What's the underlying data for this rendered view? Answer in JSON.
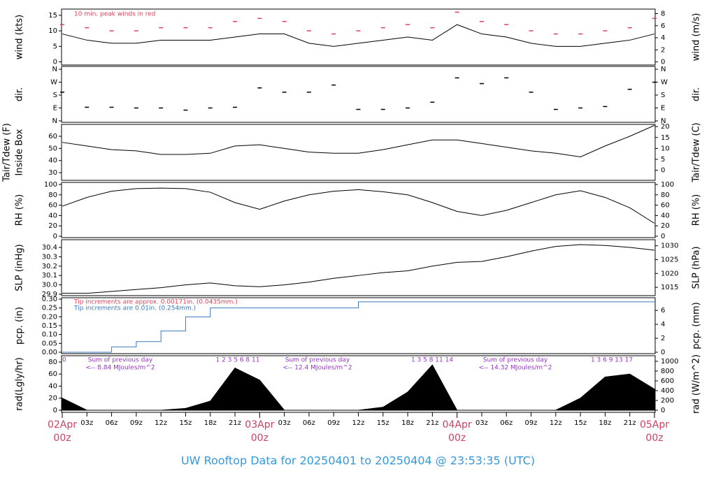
{
  "title": "UW Rooftop Data for 20250401  to  20250404 @ 23:53:35  (UTC)",
  "xlim": [
    0,
    72
  ],
  "x": [
    0,
    3,
    6,
    9,
    12,
    15,
    18,
    21,
    24,
    27,
    30,
    33,
    36,
    39,
    42,
    45,
    48,
    51,
    54,
    57,
    60,
    63,
    66,
    69,
    72
  ],
  "xticks": [
    {
      "value": 3,
      "label": "03z"
    },
    {
      "value": 6,
      "label": "06z"
    },
    {
      "value": 9,
      "label": "09z"
    },
    {
      "value": 12,
      "label": "12z"
    },
    {
      "value": 15,
      "label": "15z"
    },
    {
      "value": 18,
      "label": "18z"
    },
    {
      "value": 21,
      "label": "21z"
    },
    {
      "value": 27,
      "label": "03z"
    },
    {
      "value": 30,
      "label": "06z"
    },
    {
      "value": 33,
      "label": "09z"
    },
    {
      "value": 36,
      "label": "12z"
    },
    {
      "value": 39,
      "label": "15z"
    },
    {
      "value": 42,
      "label": "18z"
    },
    {
      "value": 45,
      "label": "21z"
    },
    {
      "value": 51,
      "label": "03z"
    },
    {
      "value": 54,
      "label": "06z"
    },
    {
      "value": 57,
      "label": "09z"
    },
    {
      "value": 60,
      "label": "12z"
    },
    {
      "value": 63,
      "label": "15z"
    },
    {
      "value": 66,
      "label": "18z"
    },
    {
      "value": 69,
      "label": "21z"
    }
  ],
  "date_ticks": [
    {
      "value": 0,
      "label": "02Apr",
      "sub": "00z"
    },
    {
      "value": 24,
      "label": "03Apr",
      "sub": "00z"
    },
    {
      "value": 48,
      "label": "04Apr",
      "sub": "00z"
    },
    {
      "value": 72,
      "label": "05Apr",
      "sub": "00z"
    }
  ],
  "chart_data": [
    {
      "type": "line",
      "ylabel": "wind (kts)",
      "y2label": "wind (m/s)",
      "ylim": [
        -1,
        17
      ],
      "yticks": [
        0,
        5,
        10,
        15
      ],
      "y2lim": [
        -0.51,
        8.75
      ],
      "y2ticks": [
        0,
        2,
        4,
        6,
        8
      ],
      "annotations": [
        "10 min. peak winds in red"
      ],
      "series": [
        {
          "color": "#000000",
          "values": [
            9,
            7,
            6,
            6,
            7,
            7,
            7,
            8,
            9,
            9,
            6,
            5,
            6,
            7,
            8,
            7,
            12,
            9,
            8,
            6,
            5,
            5,
            6,
            7,
            9
          ]
        },
        {
          "color": "#e0405a",
          "marker": "dash",
          "values": [
            12,
            11,
            10,
            10,
            11,
            11,
            11,
            13,
            14,
            13,
            10,
            9,
            10,
            11,
            12,
            11,
            16,
            13,
            12,
            10,
            9,
            9,
            10,
            11,
            14
          ]
        }
      ]
    },
    {
      "type": "scatter",
      "ylabel": "dir.",
      "y2label": "dir.",
      "ylim": [
        -10,
        380
      ],
      "yticks": [
        {
          "value": 0,
          "label": "N"
        },
        {
          "value": 90,
          "label": "E"
        },
        {
          "value": 180,
          "label": "S"
        },
        {
          "value": 270,
          "label": "W"
        },
        {
          "value": 360,
          "label": "N"
        }
      ],
      "y2lim": [
        -10,
        380
      ],
      "y2ticks": [
        {
          "value": 0,
          "label": "N"
        },
        {
          "value": 90,
          "label": "E"
        },
        {
          "value": 180,
          "label": "S"
        },
        {
          "value": 270,
          "label": "W"
        },
        {
          "value": 360,
          "label": "N"
        }
      ],
      "series": [
        {
          "color": "#000000",
          "values": [
            200,
            95,
            95,
            90,
            90,
            75,
            90,
            95,
            230,
            200,
            200,
            250,
            80,
            80,
            90,
            130,
            300,
            260,
            300,
            200,
            80,
            90,
            100,
            220,
            270
          ]
        }
      ]
    },
    {
      "type": "line",
      "ylabel": "Tair/Tdew (F)",
      "ylabel_sub": "Inside Box",
      "y2label": "Tair/Tdew (C)",
      "ylim": [
        23.7,
        69.8
      ],
      "yticks": [
        30,
        40,
        50,
        60
      ],
      "y2lim": [
        -4.6,
        21
      ],
      "y2ticks": [
        0,
        5,
        10,
        15,
        20
      ],
      "series": [
        {
          "color": "#000000",
          "values": [
            55,
            52,
            49,
            48,
            45,
            45,
            46,
            52,
            53,
            50,
            47,
            46,
            46,
            49,
            53,
            57,
            57,
            54,
            51,
            48,
            46,
            43,
            52,
            60,
            69
          ]
        }
      ]
    },
    {
      "type": "line",
      "ylabel": "RH (%)",
      "y2label": "RH (%)",
      "ylim": [
        -2.7,
        104
      ],
      "yticks": [
        0,
        20,
        40,
        60,
        80,
        100
      ],
      "y2lim": [
        -2.7,
        104
      ],
      "y2ticks": [
        0,
        20,
        40,
        60,
        80,
        100
      ],
      "series": [
        {
          "color": "#000000",
          "values": [
            58,
            75,
            87,
            92,
            93,
            92,
            85,
            65,
            52,
            68,
            80,
            87,
            90,
            86,
            80,
            65,
            48,
            40,
            50,
            65,
            80,
            88,
            75,
            55,
            25
          ]
        }
      ]
    },
    {
      "type": "line",
      "ylabel": "SLP (inHg)",
      "y2label": "SLP (hPa)",
      "ylim": [
        29.885,
        30.482
      ],
      "yticks": [
        29.9,
        {
          "value": 30,
          "label": "30.0"
        },
        30.1,
        30.2,
        30.3,
        30.4
      ],
      "y2lim": [
        1012.0,
        1032.2
      ],
      "y2ticks": [
        1015,
        1020,
        1025,
        1030
      ],
      "series": [
        {
          "color": "#000000",
          "values": [
            29.91,
            29.91,
            29.93,
            29.95,
            29.97,
            30.0,
            30.02,
            29.99,
            29.98,
            30.0,
            30.03,
            30.07,
            30.1,
            30.13,
            30.15,
            30.2,
            30.24,
            30.25,
            30.3,
            30.36,
            30.41,
            30.43,
            30.42,
            30.4,
            30.37
          ]
        }
      ]
    },
    {
      "type": "step",
      "ylabel": "pcp. (in)",
      "y2label": "pcp. (mm)",
      "ylim": [
        -0.008,
        0.308
      ],
      "yticks": [
        {
          "value": 0,
          "label": "0.00"
        },
        0.05,
        {
          "value": 0.1,
          "label": "0.10"
        },
        0.15,
        {
          "value": 0.2,
          "label": "0.20"
        },
        0.25,
        {
          "value": 0.3,
          "label": "0.30"
        }
      ],
      "y2lim": [
        -0.2,
        7.82
      ],
      "y2ticks": [
        0,
        2,
        4,
        6
      ],
      "annotations": [
        "Tip increments are approx. 0.00171in. (0.0435mm.)"
      ],
      "series": [
        {
          "name": "Tip increments are 0.01in. (0.254mm.)",
          "color": "#3a7abf",
          "values": [
            0,
            0,
            0.03,
            0.06,
            0.12,
            0.2,
            0.25,
            0.25,
            0.25,
            0.25,
            0.25,
            0.25,
            0.285,
            0.285,
            0.285,
            0.285,
            0.285,
            0.285,
            0.285,
            0.285,
            0.285,
            0.285,
            0.285,
            0.285,
            0.285
          ]
        }
      ]
    },
    {
      "type": "area",
      "ylabel": "rad(Lgly/hr)",
      "y2label": "rad (W/m^2)",
      "ylim": [
        -3.5,
        90.4
      ],
      "yticks": [
        0,
        20,
        40,
        60,
        80
      ],
      "y2lim": [
        -43,
        1114
      ],
      "y2ticks": [
        0,
        200,
        400,
        600,
        800,
        1000
      ],
      "annotations": [
        "Sum of previous day",
        "<-- 8.84 MJoules/m^2",
        "Sum of previous day",
        "<-- 12.4 MJoules/m^2",
        "Sum of previous day",
        "<-- 14.32 MJoules/m^2"
      ],
      "hour_marks": [
        "0",
        "1    2    3    5    6    8    11",
        "1    3    5    8    11        14",
        "1    3    6    9    13    17"
      ],
      "series": [
        {
          "color": "#000000",
          "values": [
            20,
            0,
            0,
            0,
            0,
            3,
            15,
            70,
            50,
            0,
            0,
            0,
            0,
            5,
            30,
            75,
            0,
            0,
            0,
            0,
            0,
            20,
            55,
            60,
            35
          ]
        }
      ]
    }
  ]
}
